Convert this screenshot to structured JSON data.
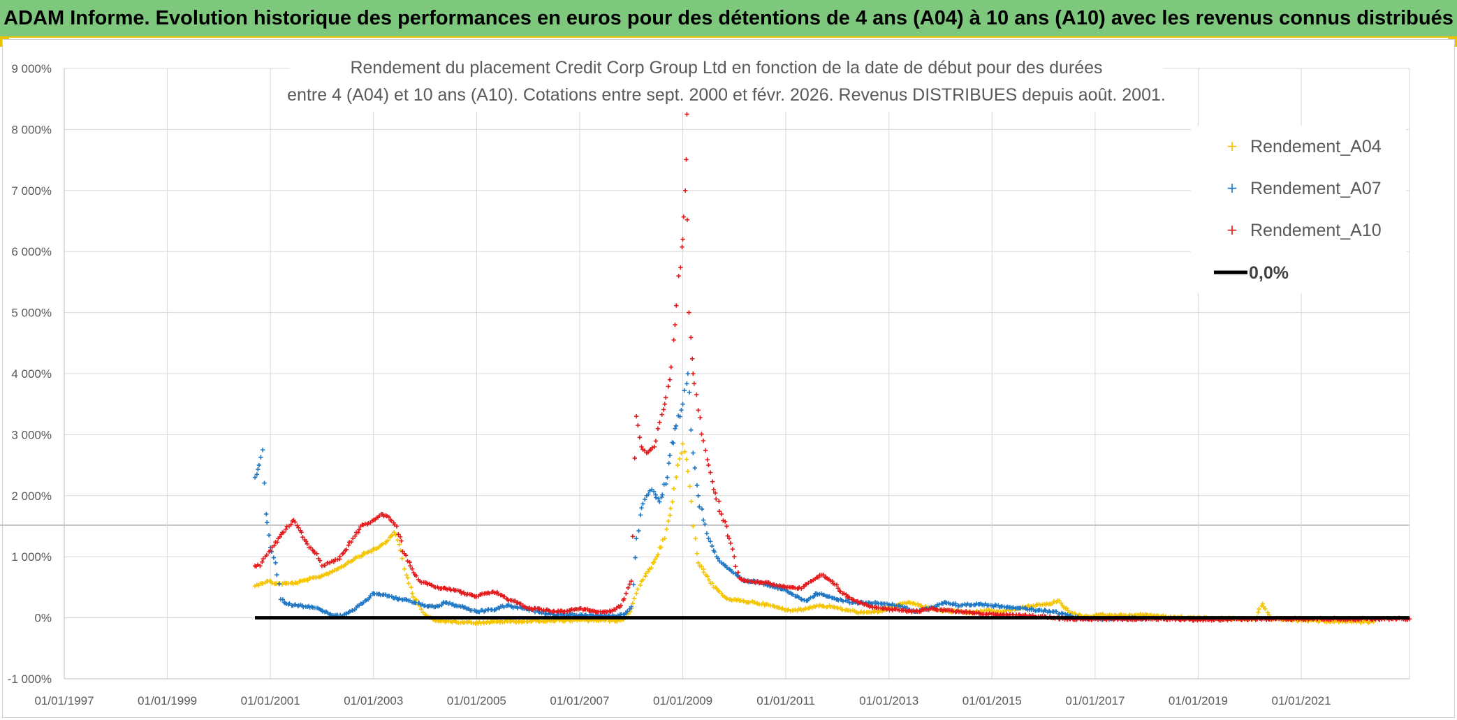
{
  "banner": {
    "title": "ADAM Informe. Evolution historique des performances en euros pour des détentions de 4 ans (A04) à 10 ans (A10) avec les revenus connus distribués"
  },
  "chart_data": {
    "type": "scatter",
    "title_line1": "Rendement du placement Credit Corp Group Ltd en fonction de la date de début pour des durées",
    "title_line2": "entre 4 (A04) et 10 ans (A10). Cotations entre sept. 2000 et févr. 2026. Revenus DISTRIBUES depuis août. 2001.",
    "xlabel": "",
    "ylabel": "",
    "x_tick_labels": [
      "01/01/1997",
      "01/01/1999",
      "01/01/2001",
      "01/01/2003",
      "01/01/2005",
      "01/01/2007",
      "01/01/2009",
      "01/01/2011",
      "01/01/2013",
      "01/01/2015",
      "01/01/2017",
      "01/01/2019",
      "01/01/2021"
    ],
    "x_ticks": [
      1997,
      1999,
      2001,
      2003,
      2005,
      2007,
      2009,
      2011,
      2013,
      2015,
      2017,
      2019,
      2021
    ],
    "xlim": [
      1997,
      2023.1
    ],
    "y_tick_labels": [
      "-1 000%",
      "0%",
      "1 000%",
      "2 000%",
      "3 000%",
      "4 000%",
      "5 000%",
      "6 000%",
      "7 000%",
      "8 000%",
      "9 000%"
    ],
    "y_ticks": [
      -1000,
      0,
      1000,
      2000,
      3000,
      4000,
      5000,
      6000,
      7000,
      8000,
      9000
    ],
    "ylim": [
      -1000,
      9000
    ],
    "grid": true,
    "legend_position": "top-right",
    "series": [
      {
        "name": "Rendement_A04",
        "color": "#f5c400",
        "marker": "+",
        "points": [
          [
            2000.7,
            520
          ],
          [
            2000.8,
            560
          ],
          [
            2000.95,
            600
          ],
          [
            2001.1,
            560
          ],
          [
            2001.3,
            560
          ],
          [
            2001.5,
            570
          ],
          [
            2001.7,
            620
          ],
          [
            2001.9,
            660
          ],
          [
            2002.1,
            720
          ],
          [
            2002.3,
            800
          ],
          [
            2002.5,
            900
          ],
          [
            2002.7,
            1000
          ],
          [
            2002.9,
            1080
          ],
          [
            2003.1,
            1150
          ],
          [
            2003.25,
            1250
          ],
          [
            2003.4,
            1400
          ],
          [
            2003.5,
            1200
          ],
          [
            2003.6,
            800
          ],
          [
            2003.75,
            400
          ],
          [
            2003.9,
            200
          ],
          [
            2004.0,
            50
          ],
          [
            2004.2,
            -50
          ],
          [
            2004.5,
            -60
          ],
          [
            2004.8,
            -70
          ],
          [
            2005.0,
            -80
          ],
          [
            2005.3,
            -70
          ],
          [
            2005.6,
            -60
          ],
          [
            2005.9,
            -60
          ],
          [
            2006.2,
            -50
          ],
          [
            2006.5,
            -50
          ],
          [
            2006.8,
            -40
          ],
          [
            2007.1,
            -40
          ],
          [
            2007.4,
            -40
          ],
          [
            2007.7,
            -50
          ],
          [
            2007.85,
            -30
          ],
          [
            2008.0,
            150
          ],
          [
            2008.1,
            400
          ],
          [
            2008.2,
            600
          ],
          [
            2008.35,
            800
          ],
          [
            2008.5,
            1000
          ],
          [
            2008.65,
            1300
          ],
          [
            2008.8,
            1900
          ],
          [
            2008.9,
            2500
          ],
          [
            2009.0,
            2850
          ],
          [
            2009.1,
            2400
          ],
          [
            2009.2,
            1500
          ],
          [
            2009.3,
            900
          ],
          [
            2009.45,
            700
          ],
          [
            2009.6,
            500
          ],
          [
            2009.75,
            400
          ],
          [
            2009.9,
            300
          ],
          [
            2010.1,
            280
          ],
          [
            2010.4,
            250
          ],
          [
            2010.7,
            200
          ],
          [
            2011.0,
            130
          ],
          [
            2011.3,
            130
          ],
          [
            2011.6,
            200
          ],
          [
            2011.9,
            180
          ],
          [
            2012.2,
            120
          ],
          [
            2012.5,
            80
          ],
          [
            2012.8,
            100
          ],
          [
            2013.1,
            200
          ],
          [
            2013.4,
            250
          ],
          [
            2013.7,
            180
          ],
          [
            2014.0,
            120
          ],
          [
            2014.3,
            100
          ],
          [
            2014.6,
            80
          ],
          [
            2014.9,
            120
          ],
          [
            2015.2,
            100
          ],
          [
            2015.5,
            150
          ],
          [
            2015.8,
            200
          ],
          [
            2016.1,
            220
          ],
          [
            2016.3,
            280
          ],
          [
            2016.5,
            80
          ],
          [
            2016.8,
            20
          ],
          [
            2017.1,
            50
          ],
          [
            2017.4,
            40
          ],
          [
            2017.7,
            40
          ],
          [
            2018.0,
            50
          ],
          [
            2018.3,
            20
          ],
          [
            2018.6,
            10
          ],
          [
            2018.9,
            0
          ],
          [
            2019.2,
            -10
          ],
          [
            2019.5,
            -10
          ],
          [
            2019.8,
            -20
          ],
          [
            2020.1,
            -20
          ],
          [
            2020.25,
            230
          ],
          [
            2020.4,
            -10
          ],
          [
            2020.7,
            -30
          ],
          [
            2021.0,
            -40
          ],
          [
            2021.3,
            -50
          ],
          [
            2021.6,
            -60
          ],
          [
            2021.9,
            -60
          ],
          [
            2022.2,
            -70
          ],
          [
            2022.4,
            -70
          ]
        ]
      },
      {
        "name": "Rendement_A07",
        "color": "#1f77c4",
        "marker": "+",
        "points": [
          [
            2000.7,
            2300
          ],
          [
            2000.78,
            2500
          ],
          [
            2000.85,
            2750
          ],
          [
            2000.92,
            1700
          ],
          [
            2001.0,
            1150
          ],
          [
            2001.1,
            900
          ],
          [
            2001.2,
            300
          ],
          [
            2001.35,
            220
          ],
          [
            2001.55,
            200
          ],
          [
            2001.8,
            180
          ],
          [
            2002.0,
            120
          ],
          [
            2002.2,
            40
          ],
          [
            2002.4,
            30
          ],
          [
            2002.6,
            120
          ],
          [
            2002.8,
            250
          ],
          [
            2003.0,
            400
          ],
          [
            2003.2,
            380
          ],
          [
            2003.4,
            320
          ],
          [
            2003.6,
            300
          ],
          [
            2003.8,
            250
          ],
          [
            2004.0,
            200
          ],
          [
            2004.2,
            180
          ],
          [
            2004.4,
            250
          ],
          [
            2004.6,
            200
          ],
          [
            2004.8,
            150
          ],
          [
            2005.0,
            100
          ],
          [
            2005.3,
            130
          ],
          [
            2005.6,
            200
          ],
          [
            2005.9,
            150
          ],
          [
            2006.2,
            100
          ],
          [
            2006.5,
            50
          ],
          [
            2006.8,
            50
          ],
          [
            2007.1,
            40
          ],
          [
            2007.4,
            30
          ],
          [
            2007.7,
            20
          ],
          [
            2007.9,
            80
          ],
          [
            2008.0,
            180
          ],
          [
            2008.1,
            1300
          ],
          [
            2008.2,
            1800
          ],
          [
            2008.3,
            2000
          ],
          [
            2008.4,
            2100
          ],
          [
            2008.55,
            1900
          ],
          [
            2008.7,
            2300
          ],
          [
            2008.85,
            3100
          ],
          [
            2009.0,
            3500
          ],
          [
            2009.1,
            4000
          ],
          [
            2009.2,
            2700
          ],
          [
            2009.3,
            2000
          ],
          [
            2009.4,
            1600
          ],
          [
            2009.5,
            1300
          ],
          [
            2009.6,
            1100
          ],
          [
            2009.75,
            900
          ],
          [
            2009.9,
            800
          ],
          [
            2010.05,
            700
          ],
          [
            2010.2,
            600
          ],
          [
            2010.4,
            600
          ],
          [
            2010.6,
            550
          ],
          [
            2010.8,
            500
          ],
          [
            2011.0,
            450
          ],
          [
            2011.2,
            350
          ],
          [
            2011.4,
            280
          ],
          [
            2011.6,
            400
          ],
          [
            2011.8,
            350
          ],
          [
            2012.0,
            300
          ],
          [
            2012.3,
            250
          ],
          [
            2012.6,
            250
          ],
          [
            2012.9,
            230
          ],
          [
            2013.2,
            200
          ],
          [
            2013.5,
            100
          ],
          [
            2013.8,
            150
          ],
          [
            2014.1,
            250
          ],
          [
            2014.4,
            200
          ],
          [
            2014.7,
            230
          ],
          [
            2015.0,
            200
          ],
          [
            2015.3,
            180
          ],
          [
            2015.6,
            160
          ],
          [
            2015.9,
            120
          ],
          [
            2016.2,
            100
          ],
          [
            2016.5,
            30
          ],
          [
            2016.8,
            -10
          ],
          [
            2017.1,
            -20
          ],
          [
            2017.4,
            -10
          ],
          [
            2017.7,
            -10
          ],
          [
            2018.0,
            -20
          ]
        ]
      },
      {
        "name": "Rendement_A10",
        "color": "#e31a1c",
        "marker": "+",
        "points": [
          [
            2000.7,
            850
          ],
          [
            2000.8,
            850
          ],
          [
            2000.9,
            1000
          ],
          [
            2001.0,
            1100
          ],
          [
            2001.15,
            1300
          ],
          [
            2001.3,
            1450
          ],
          [
            2001.45,
            1600
          ],
          [
            2001.6,
            1400
          ],
          [
            2001.75,
            1150
          ],
          [
            2001.9,
            1050
          ],
          [
            2002.0,
            850
          ],
          [
            2002.15,
            900
          ],
          [
            2002.3,
            950
          ],
          [
            2002.45,
            1100
          ],
          [
            2002.6,
            1300
          ],
          [
            2002.75,
            1500
          ],
          [
            2002.9,
            1550
          ],
          [
            2003.0,
            1600
          ],
          [
            2003.15,
            1700
          ],
          [
            2003.3,
            1650
          ],
          [
            2003.45,
            1500
          ],
          [
            2003.6,
            1050
          ],
          [
            2003.75,
            800
          ],
          [
            2003.9,
            600
          ],
          [
            2004.05,
            550
          ],
          [
            2004.2,
            500
          ],
          [
            2004.4,
            480
          ],
          [
            2004.6,
            450
          ],
          [
            2004.8,
            380
          ],
          [
            2005.0,
            350
          ],
          [
            2005.2,
            400
          ],
          [
            2005.4,
            420
          ],
          [
            2005.6,
            300
          ],
          [
            2005.8,
            250
          ],
          [
            2006.0,
            150
          ],
          [
            2006.2,
            150
          ],
          [
            2006.4,
            120
          ],
          [
            2006.6,
            100
          ],
          [
            2006.8,
            120
          ],
          [
            2007.0,
            150
          ],
          [
            2007.2,
            120
          ],
          [
            2007.4,
            100
          ],
          [
            2007.6,
            100
          ],
          [
            2007.8,
            200
          ],
          [
            2007.9,
            400
          ],
          [
            2008.0,
            600
          ],
          [
            2008.1,
            3300
          ],
          [
            2008.2,
            2800
          ],
          [
            2008.3,
            2700
          ],
          [
            2008.45,
            2800
          ],
          [
            2008.55,
            3200
          ],
          [
            2008.65,
            3500
          ],
          [
            2008.75,
            3900
          ],
          [
            2008.85,
            4800
          ],
          [
            2008.92,
            5600
          ],
          [
            2009.0,
            6200
          ],
          [
            2009.05,
            7000
          ],
          [
            2009.08,
            8250
          ],
          [
            2009.12,
            5000
          ],
          [
            2009.2,
            4000
          ],
          [
            2009.3,
            3400
          ],
          [
            2009.4,
            2900
          ],
          [
            2009.5,
            2500
          ],
          [
            2009.6,
            2100
          ],
          [
            2009.75,
            1700
          ],
          [
            2009.9,
            1300
          ],
          [
            2010.0,
            1000
          ],
          [
            2010.1,
            650
          ],
          [
            2010.3,
            600
          ],
          [
            2010.5,
            580
          ],
          [
            2010.7,
            560
          ],
          [
            2010.9,
            520
          ],
          [
            2011.1,
            500
          ],
          [
            2011.3,
            480
          ],
          [
            2011.5,
            600
          ],
          [
            2011.7,
            700
          ],
          [
            2011.9,
            600
          ],
          [
            2012.1,
            400
          ],
          [
            2012.3,
            300
          ],
          [
            2012.6,
            200
          ],
          [
            2012.9,
            150
          ],
          [
            2013.2,
            120
          ],
          [
            2013.5,
            100
          ],
          [
            2013.8,
            150
          ],
          [
            2014.1,
            120
          ],
          [
            2014.4,
            100
          ],
          [
            2014.7,
            80
          ],
          [
            2015.0,
            60
          ],
          [
            2015.3,
            40
          ],
          [
            2015.6,
            40
          ],
          [
            2015.9,
            20
          ],
          [
            2016.2,
            0
          ],
          [
            2016.5,
            -20
          ],
          [
            2017.0,
            -20
          ],
          [
            2017.5,
            -20
          ],
          [
            2018.0,
            -20
          ],
          [
            2018.5,
            -20
          ],
          [
            2019.0,
            -30
          ],
          [
            2019.5,
            -30
          ],
          [
            2020.0,
            -20
          ],
          [
            2020.5,
            -20
          ],
          [
            2021.0,
            -20
          ],
          [
            2021.5,
            -20
          ],
          [
            2022.0,
            -20
          ],
          [
            2022.5,
            -20
          ],
          [
            2023.1,
            -20
          ]
        ]
      },
      {
        "name": "0,0%",
        "color": "#000000",
        "marker": "line",
        "points": [
          [
            2000.7,
            0
          ],
          [
            2023.1,
            0
          ]
        ]
      }
    ]
  }
}
